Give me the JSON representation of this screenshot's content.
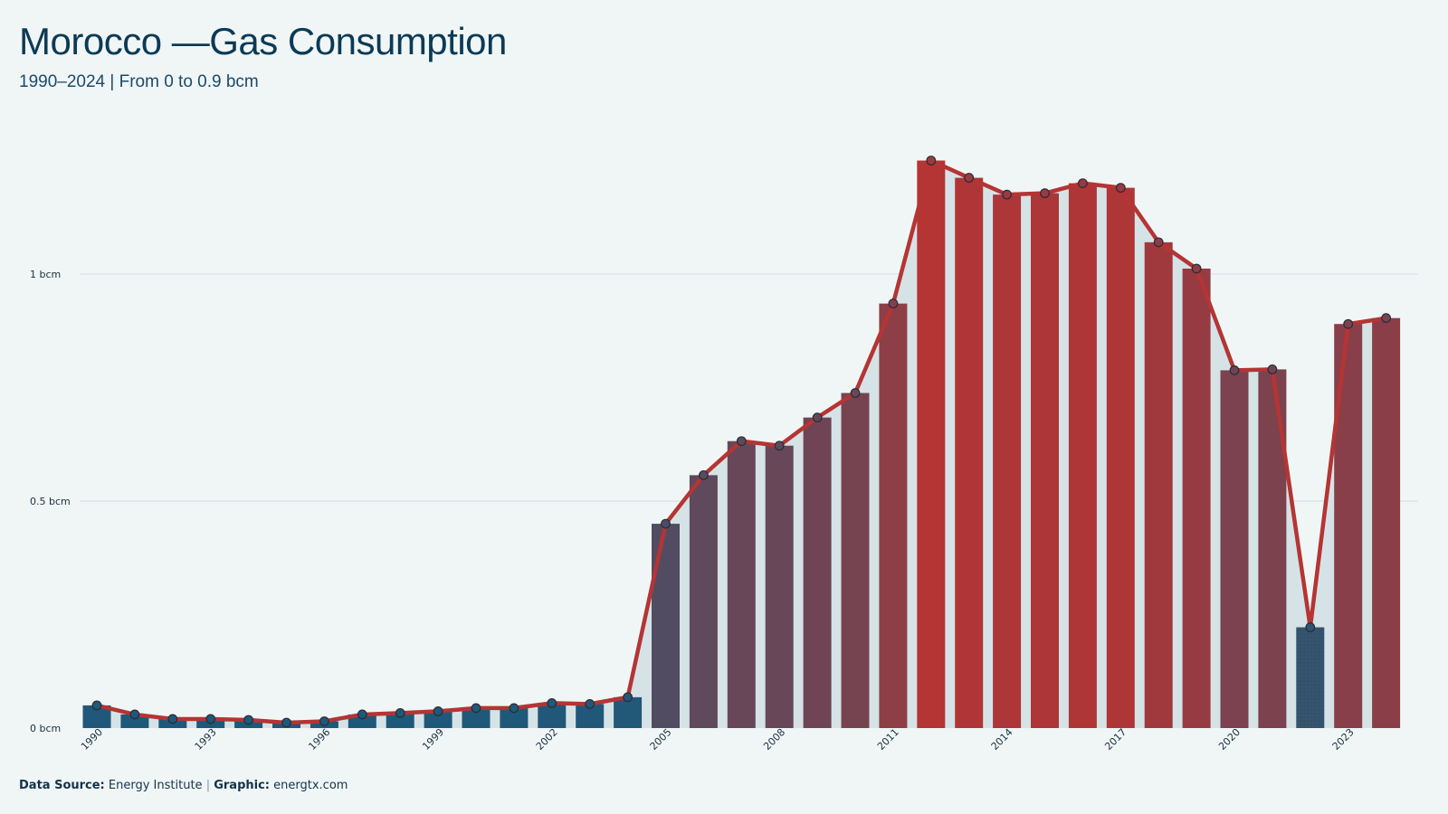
{
  "header": {
    "title": "Morocco —Gas Consumption",
    "subtitle": "1990–2024 | From 0 to 0.9 bcm"
  },
  "footer": {
    "source_label": "Data Source:",
    "source_value": "Energy Institute",
    "separator": "|",
    "graphic_label": "Graphic:",
    "graphic_value": "energtx.com"
  },
  "colors": {
    "background": "#f0f6f6",
    "low": "#1a5a7c",
    "high": "#b53434",
    "line": "#b53434",
    "area": "#d6e3e6",
    "grid": "#cfdde2"
  },
  "chart_data": {
    "type": "bar",
    "title": "Morocco —Gas Consumption",
    "subtitle": "1990–2024 | From 0 to 0.9 bcm",
    "unit": "bcm",
    "x": [
      1990,
      1991,
      1992,
      1993,
      1994,
      1995,
      1996,
      1997,
      1998,
      1999,
      2000,
      2001,
      2002,
      2003,
      2004,
      2005,
      2006,
      2007,
      2008,
      2009,
      2010,
      2011,
      2012,
      2013,
      2014,
      2015,
      2016,
      2017,
      2018,
      2019,
      2020,
      2021,
      2022,
      2023,
      2024
    ],
    "values": [
      0.05,
      0.03,
      0.02,
      0.02,
      0.018,
      0.012,
      0.015,
      0.03,
      0.033,
      0.037,
      0.044,
      0.044,
      0.055,
      0.053,
      0.068,
      0.45,
      0.557,
      0.632,
      0.622,
      0.684,
      0.738,
      0.935,
      1.25,
      1.212,
      1.175,
      1.178,
      1.2,
      1.19,
      1.07,
      1.012,
      0.788,
      0.79,
      0.222,
      0.89,
      0.903
    ],
    "x_tick_labels": [
      "1990",
      "1993",
      "1996",
      "1999",
      "2002",
      "2005",
      "2008",
      "2011",
      "2014",
      "2017",
      "2020",
      "2023"
    ],
    "y_ticks": [
      {
        "value": 0,
        "label": "0 bcm"
      },
      {
        "value": 0.5,
        "label": "0.5 bcm"
      },
      {
        "value": 1,
        "label": "1 bcm"
      }
    ],
    "ylim": [
      0,
      1.35
    ],
    "grid": true,
    "legend": "none",
    "overlay": "line-with-markers-and-area"
  }
}
